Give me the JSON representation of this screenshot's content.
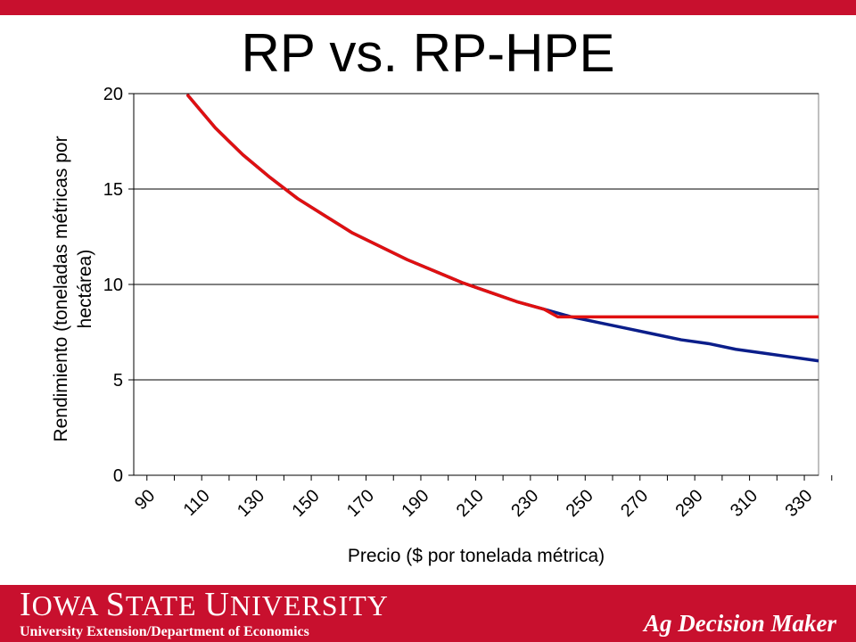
{
  "slide": {
    "title": "RP vs. RP-HPE"
  },
  "footer": {
    "logo_words": [
      {
        "initial": "I",
        "rest": "OWA"
      },
      {
        "initial": "S",
        "rest": "TATE"
      },
      {
        "initial": "U",
        "rest": "NIVERSITY"
      }
    ],
    "department": "University Extension/Department of Economics",
    "tagline": "Ag Decision Maker"
  },
  "colors": {
    "brand_red": "#c8102e",
    "series_rp": "#0b1e8a",
    "series_rp_hpe": "#e01010"
  },
  "chart_data": {
    "type": "line",
    "title": "RP vs. RP-HPE",
    "xlabel": "Precio ($ por tonelada métrica)",
    "ylabel": "Rendimiento (toneladas métricas por hectárea)",
    "ylabel_lines": [
      "Rendimiento (toneladas métricas por",
      "hectárea)"
    ],
    "ylim": [
      0,
      20
    ],
    "yticks": [
      0,
      5,
      10,
      15,
      20
    ],
    "xlim": [
      90,
      330
    ],
    "xticks": [
      90,
      110,
      130,
      150,
      170,
      190,
      210,
      230,
      250,
      270,
      290,
      310,
      330
    ],
    "grid": "horizontal",
    "legend": "none",
    "series": [
      {
        "x": [
          105,
          115,
          125,
          135,
          145,
          155,
          165,
          175,
          185,
          195,
          205,
          215,
          225,
          235,
          245,
          255,
          265,
          275,
          285,
          295,
          305,
          315,
          325,
          335
        ],
        "values": [
          19.9,
          18.2,
          16.8,
          15.6,
          14.5,
          13.6,
          12.7,
          12.0,
          11.3,
          10.7,
          10.1,
          9.6,
          9.1,
          8.7,
          8.3,
          8.0,
          7.7,
          7.4,
          7.1,
          6.9,
          6.6,
          6.4,
          6.2,
          6.0
        ]
      },
      {
        "x": [
          105,
          115,
          125,
          135,
          145,
          155,
          165,
          175,
          185,
          195,
          205,
          215,
          225,
          235,
          240,
          335
        ],
        "values": [
          19.9,
          18.2,
          16.8,
          15.6,
          14.5,
          13.6,
          12.7,
          12.0,
          11.3,
          10.7,
          10.1,
          9.6,
          9.1,
          8.7,
          8.3,
          8.3
        ]
      }
    ]
  }
}
